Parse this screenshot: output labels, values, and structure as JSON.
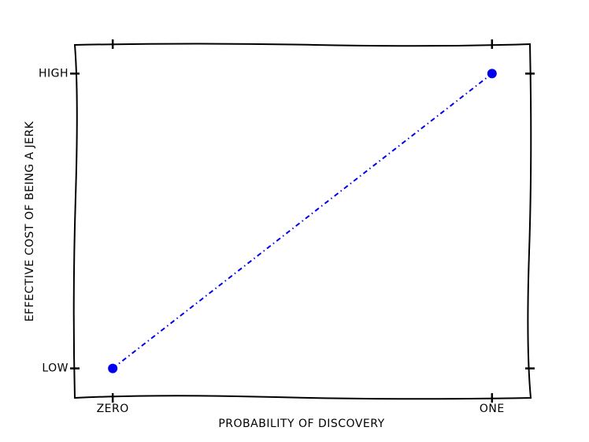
{
  "chart_data": {
    "type": "line",
    "x": [
      0,
      1
    ],
    "values": [
      0,
      1
    ],
    "color": "#0000ee",
    "linestyle": "-.",
    "marker": "o",
    "xlabel": "PROBABILITY OF DISCOVERY",
    "ylabel": "EFFECTIVE COST OF BEING A JERK",
    "xlim": [
      -0.1,
      1.1
    ],
    "ylim": [
      -0.1,
      1.1
    ],
    "xticks": [
      {
        "value": 0,
        "label": "ZERO"
      },
      {
        "value": 1,
        "label": "ONE"
      }
    ],
    "yticks": [
      {
        "value": 0,
        "label": "LOW"
      },
      {
        "value": 1,
        "label": "HIGH"
      }
    ],
    "grid": false
  }
}
